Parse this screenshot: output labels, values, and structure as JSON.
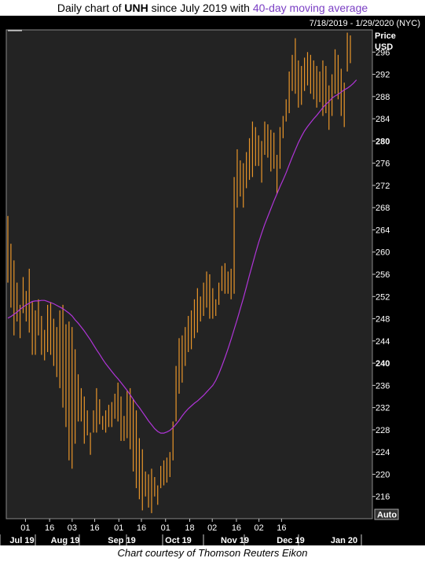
{
  "title": {
    "prefix": "Daily chart of ",
    "ticker": "UNH",
    "middle": " since July 2019 with ",
    "ma_label": "40-day moving average"
  },
  "caption": "Chart courtesy of Thomson Reuters Eikon",
  "chart_data": {
    "type": "ohlc",
    "date_range_label": "7/18/2019 - 1/29/2020 (NYC)",
    "ylabel": "Price",
    "yunit": "USD",
    "ylim": [
      212,
      300
    ],
    "yticks": [
      216,
      220,
      224,
      228,
      232,
      236,
      240,
      244,
      248,
      252,
      256,
      260,
      264,
      268,
      272,
      276,
      280,
      284,
      288,
      292,
      296
    ],
    "ytick_bold": [
      240,
      280
    ],
    "x_day_labels": [
      "01",
      "16",
      "03",
      "16",
      "01",
      "16",
      "01",
      "18",
      "02",
      "16",
      "02",
      "16"
    ],
    "x_month_labels": [
      "Jul 19",
      "Aug 19",
      "Sep 19",
      "Oct 19",
      "Nov 19",
      "Dec 19",
      "Jan 20"
    ],
    "auto_label": "Auto",
    "grid": false,
    "colors": {
      "background": "#232323",
      "bars": "#e8952a",
      "moving_average": "#b035d8",
      "axis_text": "#ffffff",
      "title_ma": "#7b3fc4"
    },
    "series": [
      {
        "name": "UNH",
        "style": "ohlc",
        "highs": [
          266.5,
          261.5,
          258.5,
          254.5,
          250.5,
          255.5,
          253,
          257,
          251,
          249.5,
          251.5,
          248.5,
          246,
          250.5,
          251,
          248,
          246.5,
          249.5,
          250.5,
          247,
          247.5,
          246.5,
          242.5,
          238,
          235.5,
          234,
          231.5,
          227.5,
          231.5,
          235.5,
          233.5,
          230.5,
          231.5,
          232.5,
          233,
          234.5,
          236.5,
          234,
          230.5,
          235,
          235.5,
          233.5,
          231.5,
          226.5,
          224.5,
          220.5,
          220,
          221,
          219.5,
          218,
          221.5,
          222.5,
          223,
          224,
          229.5,
          239.5,
          244.5,
          245,
          246.5,
          248.5,
          249.5,
          251.5,
          253.5,
          252,
          254.5,
          256.5,
          256,
          253.5,
          251.5,
          254.5,
          257.5,
          258,
          256.5,
          257,
          273.5,
          278.5,
          276.5,
          276,
          278,
          280.5,
          283.5,
          282.5,
          281,
          280,
          283.5,
          283,
          282,
          281.5,
          277.5,
          282.5,
          284.5,
          287.5,
          292.5,
          295.5,
          298.5,
          294.5,
          293.5,
          295,
          296,
          295.5,
          294.5,
          293.5,
          292.5,
          294.5,
          293.5,
          290,
          292,
          296.5,
          295.5,
          293,
          290.5,
          299.5,
          299
        ],
        "lows": [
          254.5,
          250,
          245,
          247.5,
          244.5,
          249,
          247.5,
          245.5,
          241.5,
          241.5,
          245,
          241.5,
          240.5,
          242,
          241.5,
          239.5,
          237.5,
          235.5,
          232,
          228.5,
          222.5,
          221,
          225.5,
          229.5,
          229.5,
          225.5,
          227,
          223.5,
          227.5,
          227.5,
          229,
          228,
          227.5,
          228.5,
          228.5,
          230,
          229.5,
          226,
          226,
          226.5,
          224.5,
          220.5,
          217.5,
          215.5,
          213.5,
          216,
          214,
          213,
          216,
          214.5,
          217.5,
          218,
          218.5,
          219.5,
          222.5,
          229.5,
          234.5,
          236.5,
          239.5,
          242,
          242.5,
          244.5,
          245.5,
          247.5,
          248.5,
          250,
          248,
          248,
          248.5,
          250.5,
          253,
          252.5,
          252.5,
          251.5,
          252.5,
          268,
          270,
          268,
          271.5,
          273,
          273.5,
          275.5,
          275.5,
          272.5,
          277.5,
          277,
          274.5,
          275,
          270.5,
          275,
          280.5,
          283.5,
          285,
          289,
          288.5,
          286,
          286.5,
          289,
          290,
          288.5,
          287.5,
          286,
          287,
          284.5,
          285,
          282,
          284.5,
          288.5,
          287.5,
          284.5,
          282.5,
          292.5,
          294
        ]
      },
      {
        "name": "40-day moving average",
        "style": "line",
        "values": [
          248.1,
          248.4,
          248.8,
          249.2,
          249.7,
          250.1,
          250.5,
          250.8,
          251.1,
          251.2,
          251.2,
          251.3,
          251.3,
          251.1,
          250.9,
          250.7,
          250.4,
          250.1,
          249.8,
          249.4,
          249,
          248.5,
          247.8,
          247.2,
          246.5,
          245.8,
          245,
          244.2,
          243.3,
          242.4,
          241.6,
          240.7,
          239.9,
          239.2,
          238.5,
          237.8,
          237.2,
          236.5,
          235.8,
          235.1,
          234.3,
          233.5,
          232.7,
          232,
          231.2,
          230.4,
          229.6,
          228.9,
          228.2,
          227.7,
          227.4,
          227.4,
          227.6,
          227.9,
          228.4,
          229,
          229.7,
          230.5,
          231.2,
          231.8,
          232.3,
          232.8,
          233.2,
          233.7,
          234.2,
          234.8,
          235.4,
          236,
          236.9,
          238.1,
          239.5,
          241,
          242.6,
          244.3,
          246.1,
          247.9,
          249.8,
          251.7,
          253.7,
          255.8,
          257.8,
          259.8,
          261.7,
          263.4,
          265,
          266.4,
          267.8,
          269.2,
          270.5,
          271.8,
          273,
          274.3,
          275.7,
          277.1,
          278.4,
          279.7,
          280.8,
          281.8,
          282.6,
          283.3,
          284,
          284.6,
          285.3,
          286,
          286.6,
          287.1,
          287.7,
          288.1,
          288.4,
          288.8,
          289.2,
          289.5,
          289.9,
          290.4,
          291
        ]
      }
    ]
  }
}
